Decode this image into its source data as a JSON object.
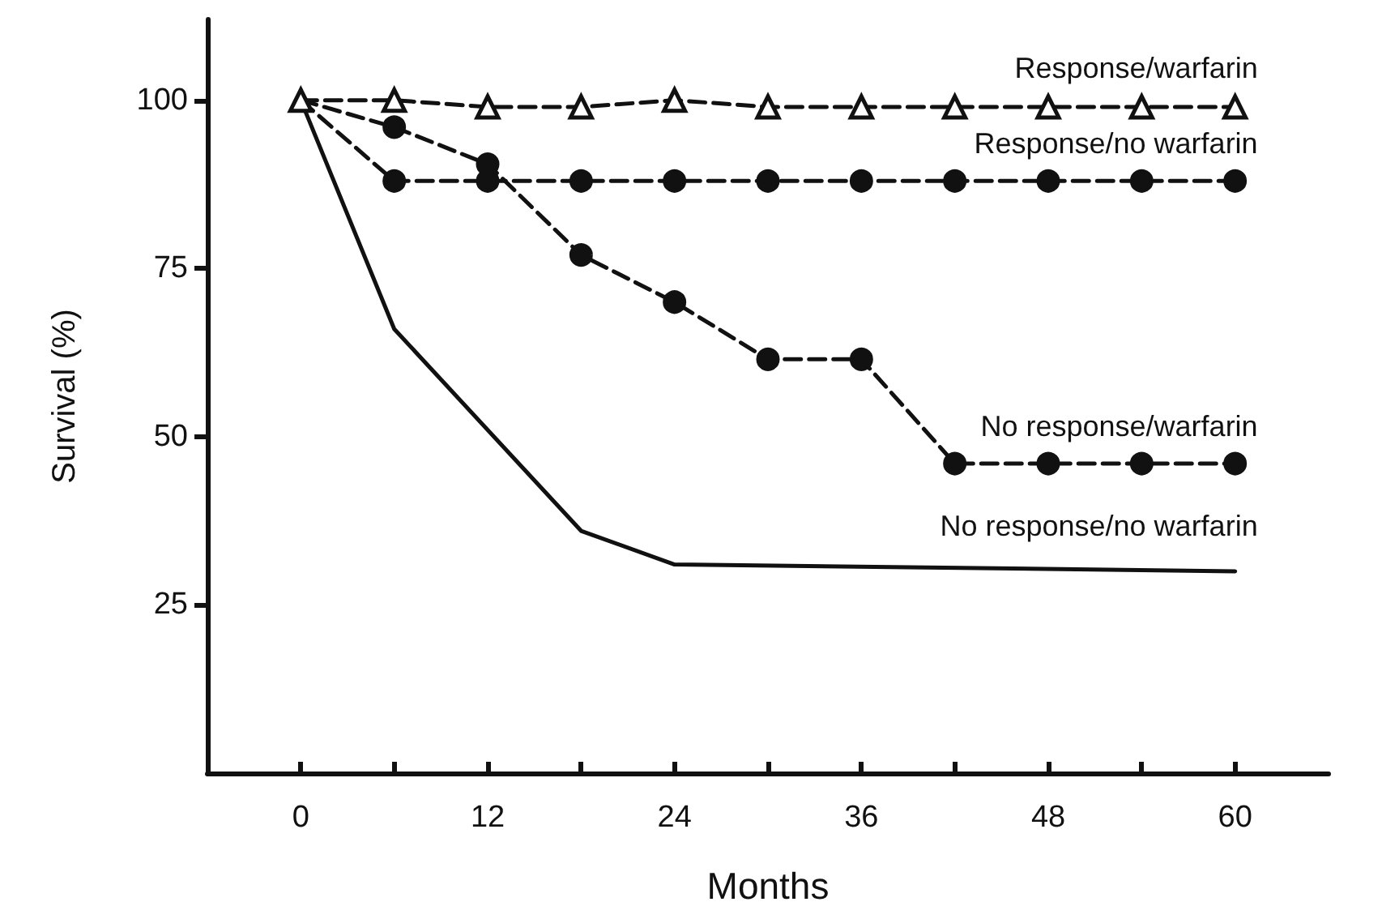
{
  "chart_data": {
    "type": "line",
    "xlabel": "Months",
    "ylabel": "Survival (%)",
    "xlim": [
      -6,
      66
    ],
    "ylim": [
      0,
      112
    ],
    "xticks": [
      0,
      {
        "value": 6,
        "label": null
      },
      12,
      {
        "value": 18,
        "label": null
      },
      24,
      {
        "value": 30,
        "label": null
      },
      36,
      {
        "value": 42,
        "label": null
      },
      48,
      {
        "value": 54,
        "label": null
      },
      60
    ],
    "yticks": [
      25,
      50,
      75,
      100
    ],
    "grid": false,
    "legend": false,
    "x": [
      0,
      6,
      12,
      18,
      24,
      30,
      36,
      42,
      48,
      54,
      60
    ],
    "series": [
      {
        "name": "Response/warfarin",
        "color": "#111111",
        "marker": "triangle",
        "line_style": "dashed",
        "values": [
          100,
          100,
          99,
          99,
          100,
          99,
          99,
          99,
          99,
          99,
          99
        ]
      },
      {
        "name": "Response/no warfarin",
        "color": "#111111",
        "marker": "circle",
        "line_style": "dashed",
        "values": [
          100,
          88,
          88,
          88,
          88,
          88,
          88,
          88,
          88,
          88,
          88
        ]
      },
      {
        "name": "No response/warfarin",
        "color": "#111111",
        "marker": "circle",
        "line_style": "dashed",
        "values": [
          100,
          96,
          90.5,
          77,
          70,
          61.5,
          61.5,
          46,
          46,
          46,
          46
        ]
      },
      {
        "name": "No response/no warfarin",
        "color": "#111111",
        "marker": "none",
        "line_style": "solid",
        "x": [
          0,
          6,
          18,
          24,
          60
        ],
        "values": [
          100,
          66,
          36,
          31,
          30
        ]
      }
    ]
  }
}
